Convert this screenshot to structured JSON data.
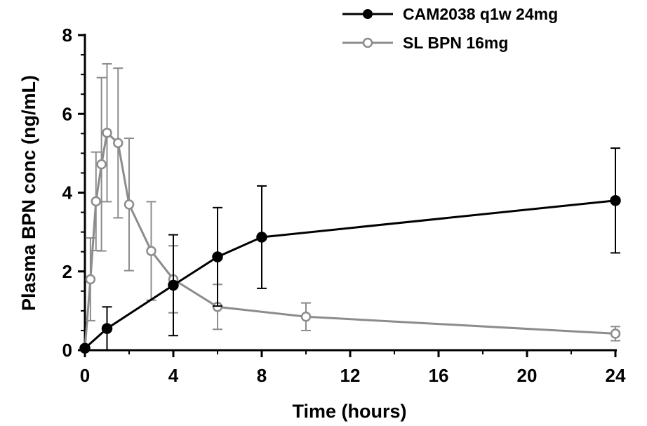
{
  "chart_data": {
    "type": "line",
    "xlabel": "Time (hours)",
    "ylabel": "Plasma BPN conc (ng/mL)",
    "xlim": [
      0,
      24
    ],
    "ylim": [
      0,
      8
    ],
    "x_ticks": [
      0,
      4,
      8,
      12,
      16,
      20,
      24
    ],
    "y_ticks": [
      0,
      2,
      4,
      6,
      8
    ],
    "grid": false,
    "legend_position": "top-right",
    "series": [
      {
        "name": "CAM2038 q1w 24mg",
        "color": "#000000",
        "marker": "filled-circle",
        "points": [
          {
            "x": 0,
            "y": 0.05,
            "err": 0
          },
          {
            "x": 1,
            "y": 0.55,
            "err": 0.55
          },
          {
            "x": 4,
            "y": 1.65,
            "err": 1.28
          },
          {
            "x": 6,
            "y": 2.37,
            "err": 1.25
          },
          {
            "x": 8,
            "y": 2.87,
            "err": 1.3
          },
          {
            "x": 24,
            "y": 3.8,
            "err": 1.33
          }
        ]
      },
      {
        "name": "SL BPN 16mg",
        "color": "#8c8c8c",
        "marker": "open-circle",
        "points": [
          {
            "x": 0,
            "y": 0.05,
            "err": 0
          },
          {
            "x": 0.25,
            "y": 1.8,
            "err": 1.05
          },
          {
            "x": 0.5,
            "y": 3.78,
            "err": 1.25
          },
          {
            "x": 0.75,
            "y": 4.72,
            "err": 2.2
          },
          {
            "x": 1,
            "y": 5.52,
            "err": 1.75
          },
          {
            "x": 1.5,
            "y": 5.26,
            "err": 1.9
          },
          {
            "x": 2,
            "y": 3.7,
            "err": 1.68
          },
          {
            "x": 3,
            "y": 2.52,
            "err": 1.25
          },
          {
            "x": 4,
            "y": 1.8,
            "err": 0.85
          },
          {
            "x": 6,
            "y": 1.1,
            "err": 0.57
          },
          {
            "x": 10,
            "y": 0.85,
            "err": 0.35
          },
          {
            "x": 24,
            "y": 0.42,
            "err": 0.18
          }
        ]
      }
    ]
  }
}
